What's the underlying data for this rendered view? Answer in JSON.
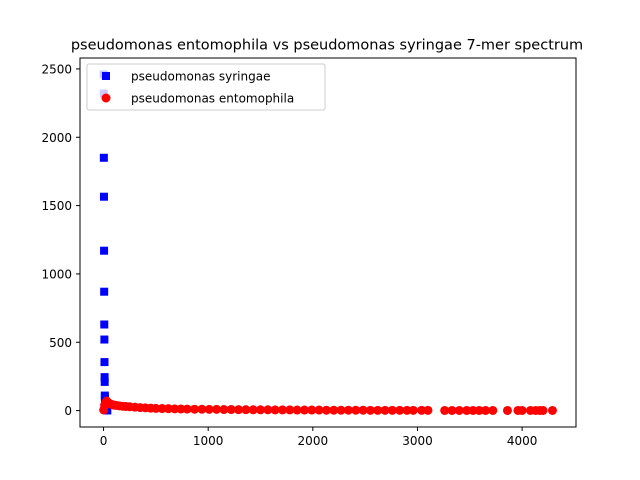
{
  "chart_data": {
    "type": "scatter",
    "title": "pseudomonas entomophila vs pseudomonas syringae 7-mer spectrum",
    "xlabel": "",
    "ylabel": "",
    "xlim": [
      -225,
      4515
    ],
    "ylim": [
      -120,
      2580
    ],
    "xticks": [
      0,
      1000,
      2000,
      3000,
      4000
    ],
    "yticks": [
      0,
      500,
      1000,
      1500,
      2000,
      2500
    ],
    "grid": false,
    "legend_position": "top-left",
    "series": [
      {
        "name": "pseudomonas syringae",
        "marker": "square",
        "color": "#0000ff",
        "points": [
          [
            1,
            2460
          ],
          [
            2,
            2320
          ],
          [
            3,
            1850
          ],
          [
            4,
            1565
          ],
          [
            5,
            1170
          ],
          [
            6,
            870
          ],
          [
            7,
            630
          ],
          [
            8,
            520
          ],
          [
            9,
            355
          ],
          [
            10,
            245
          ],
          [
            11,
            210
          ],
          [
            12,
            110
          ],
          [
            13,
            95
          ],
          [
            14,
            80
          ],
          [
            15,
            60
          ],
          [
            16,
            45
          ],
          [
            17,
            35
          ],
          [
            18,
            28
          ],
          [
            20,
            20
          ],
          [
            22,
            15
          ],
          [
            25,
            10
          ],
          [
            28,
            6
          ],
          [
            32,
            3
          ],
          [
            36,
            1
          ]
        ]
      },
      {
        "name": "pseudomonas entomophila",
        "marker": "circle",
        "color": "#ff0000",
        "points": [
          [
            1,
            5
          ],
          [
            10,
            40
          ],
          [
            20,
            60
          ],
          [
            30,
            70
          ],
          [
            40,
            62
          ],
          [
            50,
            55
          ],
          [
            60,
            50
          ],
          [
            80,
            45
          ],
          [
            100,
            40
          ],
          [
            120,
            38
          ],
          [
            150,
            35
          ],
          [
            180,
            32
          ],
          [
            210,
            30
          ],
          [
            250,
            28
          ],
          [
            300,
            25
          ],
          [
            350,
            22
          ],
          [
            400,
            20
          ],
          [
            450,
            18
          ],
          [
            500,
            16
          ],
          [
            560,
            15
          ],
          [
            620,
            14
          ],
          [
            680,
            13
          ],
          [
            740,
            12
          ],
          [
            800,
            11
          ],
          [
            870,
            10
          ],
          [
            940,
            10
          ],
          [
            1010,
            9
          ],
          [
            1080,
            9
          ],
          [
            1150,
            8
          ],
          [
            1220,
            8
          ],
          [
            1290,
            7
          ],
          [
            1360,
            7
          ],
          [
            1430,
            6
          ],
          [
            1500,
            6
          ],
          [
            1570,
            6
          ],
          [
            1640,
            5
          ],
          [
            1710,
            5
          ],
          [
            1780,
            5
          ],
          [
            1850,
            4
          ],
          [
            1920,
            4
          ],
          [
            1990,
            4
          ],
          [
            2060,
            4
          ],
          [
            2130,
            3
          ],
          [
            2200,
            3
          ],
          [
            2270,
            3
          ],
          [
            2340,
            3
          ],
          [
            2410,
            3
          ],
          [
            2480,
            3
          ],
          [
            2550,
            2
          ],
          [
            2620,
            2
          ],
          [
            2690,
            2
          ],
          [
            2760,
            2
          ],
          [
            2830,
            2
          ],
          [
            2900,
            2
          ],
          [
            2960,
            2
          ],
          [
            3040,
            2
          ],
          [
            3100,
            2
          ],
          [
            3260,
            1
          ],
          [
            3330,
            1
          ],
          [
            3400,
            1
          ],
          [
            3470,
            1
          ],
          [
            3530,
            1
          ],
          [
            3590,
            1
          ],
          [
            3650,
            1
          ],
          [
            3720,
            1
          ],
          [
            3860,
            1
          ],
          [
            3960,
            1
          ],
          [
            4000,
            1
          ],
          [
            4080,
            1
          ],
          [
            4130,
            1
          ],
          [
            4170,
            1
          ],
          [
            4200,
            1
          ],
          [
            4290,
            1
          ]
        ]
      }
    ]
  }
}
